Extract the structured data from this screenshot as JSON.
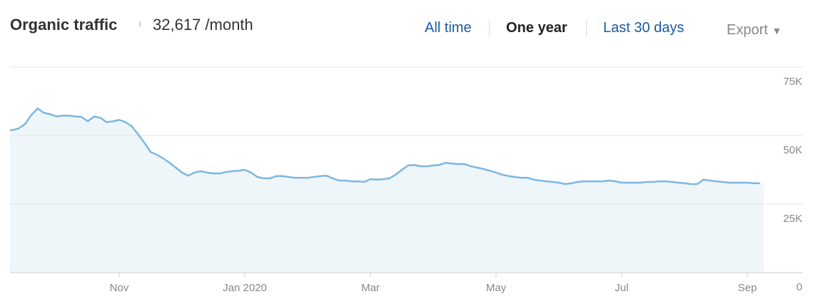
{
  "header": {
    "title": "Organic traffic",
    "info": "i",
    "value": "32,617 /month"
  },
  "tabs": [
    "All time",
    "One year",
    "Last 30 days"
  ],
  "export": "Export",
  "chart_data": {
    "type": "area",
    "categories": [
      null,
      null,
      null,
      null,
      null,
      null,
      null,
      null,
      null,
      null,
      null,
      null,
      null,
      null,
      null,
      null,
      null,
      "Nov",
      null,
      null,
      null,
      null,
      null,
      null,
      null,
      null,
      null,
      null,
      null,
      null,
      null,
      null,
      null,
      null,
      null,
      null,
      null,
      "Jan 2020",
      null,
      null,
      null,
      null,
      null,
      null,
      null,
      null,
      null,
      null,
      null,
      null,
      null,
      null,
      null,
      null,
      null,
      null,
      null,
      "Mar",
      null,
      null,
      null,
      null,
      null,
      null,
      null,
      null,
      null,
      null,
      null,
      null,
      null,
      null,
      null,
      null,
      null,
      null,
      null,
      "May",
      null,
      null,
      null,
      null,
      null,
      null,
      null,
      null,
      null,
      null,
      null,
      null,
      null,
      null,
      null,
      null,
      null,
      null,
      null,
      "Jul",
      null,
      null,
      null,
      null,
      null,
      null,
      null,
      null,
      null,
      null,
      null,
      null,
      null,
      null,
      null,
      null,
      null,
      null,
      null,
      "Sep",
      null,
      null
    ],
    "values": [
      52000,
      52600,
      54200,
      57500,
      59900,
      58300,
      57800,
      57000,
      57300,
      57300,
      57000,
      56800,
      55200,
      57000,
      56500,
      54900,
      55200,
      55700,
      54900,
      53400,
      50500,
      47400,
      44000,
      43000,
      41700,
      40100,
      38300,
      36500,
      35400,
      36500,
      37000,
      36500,
      36200,
      36200,
      36700,
      37000,
      37200,
      37500,
      36500,
      34900,
      34400,
      34400,
      35200,
      35200,
      34900,
      34600,
      34600,
      34600,
      34900,
      35200,
      35400,
      34400,
      33600,
      33600,
      33300,
      33300,
      33100,
      34100,
      33900,
      34100,
      34400,
      35700,
      37500,
      39100,
      39300,
      38800,
      38800,
      39100,
      39300,
      40100,
      39800,
      39600,
      39600,
      38800,
      38300,
      37800,
      37200,
      36500,
      35700,
      35200,
      34900,
      34600,
      34600,
      33900,
      33600,
      33300,
      33100,
      32800,
      32300,
      32600,
      33100,
      33300,
      33300,
      33300,
      33300,
      33600,
      33300,
      32800,
      32800,
      32800,
      32800,
      33100,
      33100,
      33300,
      33300,
      33100,
      32800,
      32600,
      32300,
      32300,
      33900,
      33600,
      33300,
      33100,
      32800,
      32800,
      32800,
      32800,
      32600,
      32600
    ],
    "color": "#7db7e2",
    "fill": "#eff6fa",
    "ylim": [
      0,
      75000
    ],
    "yticks": [
      0,
      {
        "value": 25000,
        "label": "25K"
      },
      {
        "value": 50000,
        "label": "50K"
      },
      {
        "value": 75000,
        "label": "75K"
      }
    ],
    "grid": true
  }
}
